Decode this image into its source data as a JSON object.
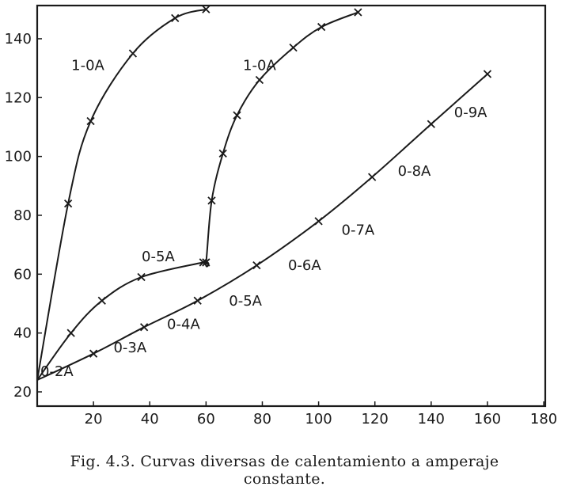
{
  "chart_data": {
    "type": "line",
    "xlim": [
      0,
      180
    ],
    "ylim": [
      20,
      150
    ],
    "x_ticks": [
      20,
      40,
      60,
      80,
      100,
      120,
      140,
      160,
      180
    ],
    "y_ticks": [
      20,
      40,
      60,
      80,
      100,
      120,
      140
    ],
    "x_tick_labels": [
      "20",
      "40",
      "60",
      "80",
      "100",
      "120",
      "140",
      "160",
      "180"
    ],
    "y_tick_labels": [
      "20",
      "40",
      "60",
      "80",
      "100",
      "120",
      "140"
    ],
    "series": [
      {
        "points": [
          [
            0,
            24
          ],
          [
            11,
            84
          ],
          [
            19,
            112
          ],
          [
            34,
            135
          ],
          [
            49,
            147
          ],
          [
            60,
            150
          ]
        ]
      },
      {
        "points": [
          [
            0,
            24
          ],
          [
            12,
            40
          ],
          [
            23,
            51
          ],
          [
            37,
            59
          ],
          [
            59,
            64
          ],
          [
            60,
            64
          ],
          [
            62,
            85
          ],
          [
            66,
            101
          ],
          [
            71,
            114
          ],
          [
            79,
            126
          ],
          [
            91,
            137
          ],
          [
            101,
            144
          ],
          [
            114,
            149
          ]
        ]
      },
      {
        "points": [
          [
            0,
            24
          ],
          [
            20,
            33
          ],
          [
            38,
            42
          ],
          [
            57,
            51
          ],
          [
            78,
            63
          ],
          [
            100,
            78
          ],
          [
            119,
            93
          ],
          [
            140,
            111
          ],
          [
            160,
            128
          ]
        ]
      }
    ],
    "annotations": [
      {
        "text": "1-0A",
        "x": 18,
        "y": 131
      },
      {
        "text": "1-0A",
        "x": 79,
        "y": 131
      },
      {
        "text": "0-5A",
        "x": 43,
        "y": 66
      },
      {
        "text": "0-2A",
        "x": 7,
        "y": 27
      },
      {
        "text": "0-3A",
        "x": 33,
        "y": 35
      },
      {
        "text": "0-4A",
        "x": 52,
        "y": 43
      },
      {
        "text": "0-5A",
        "x": 74,
        "y": 51
      },
      {
        "text": "0-6A",
        "x": 95,
        "y": 63
      },
      {
        "text": "0-7A",
        "x": 114,
        "y": 75
      },
      {
        "text": "0-8A",
        "x": 134,
        "y": 95
      },
      {
        "text": "0-9A",
        "x": 154,
        "y": 115
      }
    ]
  },
  "caption": {
    "line1": "Fig. 4.3.  Curvas diversas de calentamiento a amperaje",
    "line2": "constante."
  }
}
